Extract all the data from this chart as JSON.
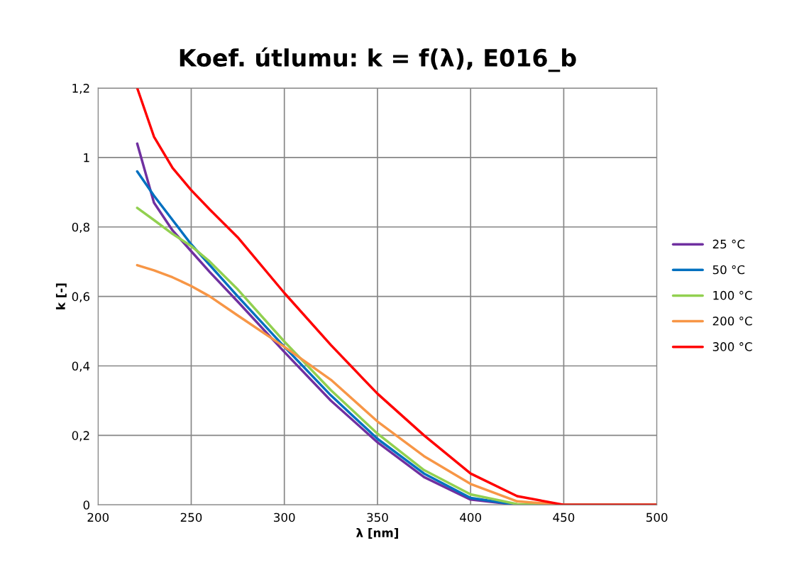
{
  "chart_data": {
    "type": "line",
    "title": "Koef. útlumu: k = f(λ), E016_b",
    "xlabel": "λ [nm]",
    "ylabel": "k [-]",
    "x": [
      221,
      230,
      240,
      250,
      260,
      275,
      300,
      325,
      350,
      375,
      400,
      425,
      450,
      500
    ],
    "series": [
      {
        "name": "25 °C",
        "color": "#7030a0",
        "values": [
          1.04,
          0.87,
          0.79,
          0.73,
          0.67,
          0.585,
          0.44,
          0.3,
          0.18,
          0.08,
          0.015,
          0,
          0,
          0
        ]
      },
      {
        "name": "50 °C",
        "color": "#0070c0",
        "values": [
          0.96,
          0.89,
          0.82,
          0.75,
          0.69,
          0.6,
          0.455,
          0.315,
          0.19,
          0.09,
          0.02,
          0,
          0,
          0
        ]
      },
      {
        "name": "100 °C",
        "color": "#92d050",
        "values": [
          0.855,
          0.82,
          0.78,
          0.745,
          0.7,
          0.62,
          0.47,
          0.33,
          0.205,
          0.1,
          0.03,
          0.002,
          0,
          0
        ]
      },
      {
        "name": "200 °C",
        "color": "#f79646",
        "values": [
          0.69,
          0.675,
          0.655,
          0.63,
          0.6,
          0.545,
          0.455,
          0.36,
          0.24,
          0.14,
          0.06,
          0.01,
          0,
          0
        ]
      },
      {
        "name": "300 °C",
        "color": "#ff0000",
        "values": [
          1.2,
          1.06,
          0.97,
          0.906,
          0.85,
          0.77,
          0.61,
          0.46,
          0.32,
          0.2,
          0.09,
          0.025,
          0,
          0
        ]
      }
    ],
    "xlim": [
      200,
      500
    ],
    "xticks": [
      200,
      250,
      300,
      350,
      400,
      450,
      500
    ],
    "ylim": [
      0,
      1.2
    ],
    "yticks": [
      0,
      {
        "value": 0.2,
        "label": "0,2"
      },
      {
        "value": 0.4,
        "label": "0,4"
      },
      {
        "value": 0.6,
        "label": "0,6"
      },
      {
        "value": 0.8,
        "label": "0,8"
      },
      1,
      {
        "value": 1.2,
        "label": "1,2"
      }
    ],
    "grid": true,
    "legend": "right",
    "marker": "none",
    "line_style": "solid"
  }
}
